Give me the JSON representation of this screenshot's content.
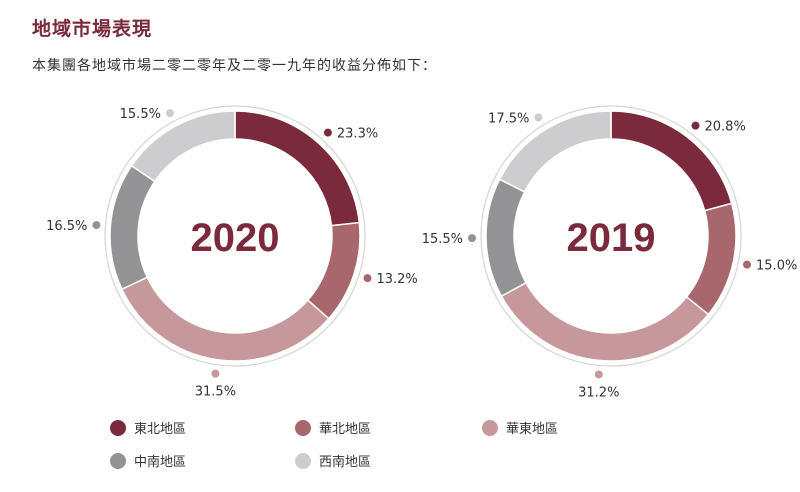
{
  "header": {
    "title": "地域市場表現",
    "subtitle": "本集團各地域市場二零二零年及二零一九年的收益分佈如下："
  },
  "colors": {
    "east_north": "#7b2a3c",
    "north": "#a8676d",
    "east": "#c6979b",
    "central_south": "#939396",
    "south_west": "#cdcdcf",
    "ring": "#d5d5d5",
    "year_text": "#7b2a3c"
  },
  "legend": [
    {
      "label": "東北地區",
      "color_key": "east_north"
    },
    {
      "label": "華北地區",
      "color_key": "north"
    },
    {
      "label": "華東地區",
      "color_key": "east"
    },
    {
      "label": "中南地區",
      "color_key": "central_south"
    },
    {
      "label": "西南地區",
      "color_key": "south_west"
    }
  ],
  "chart_data": [
    {
      "type": "pie",
      "center_label": "2020",
      "categories": [
        "東北地區",
        "華北地區",
        "華東地區",
        "中南地區",
        "西南地區"
      ],
      "values": [
        23.3,
        13.2,
        31.5,
        16.5,
        15.5
      ],
      "value_labels": [
        "23.3%",
        "13.2%",
        "31.5%",
        "16.5%",
        "15.5%"
      ]
    },
    {
      "type": "pie",
      "center_label": "2019",
      "categories": [
        "東北地區",
        "華北地區",
        "華東地區",
        "中南地區",
        "西南地區"
      ],
      "values": [
        20.8,
        15.0,
        31.2,
        15.5,
        17.5
      ],
      "value_labels": [
        "20.8%",
        "15.0%",
        "31.2%",
        "15.5%",
        "17.5%"
      ]
    }
  ]
}
